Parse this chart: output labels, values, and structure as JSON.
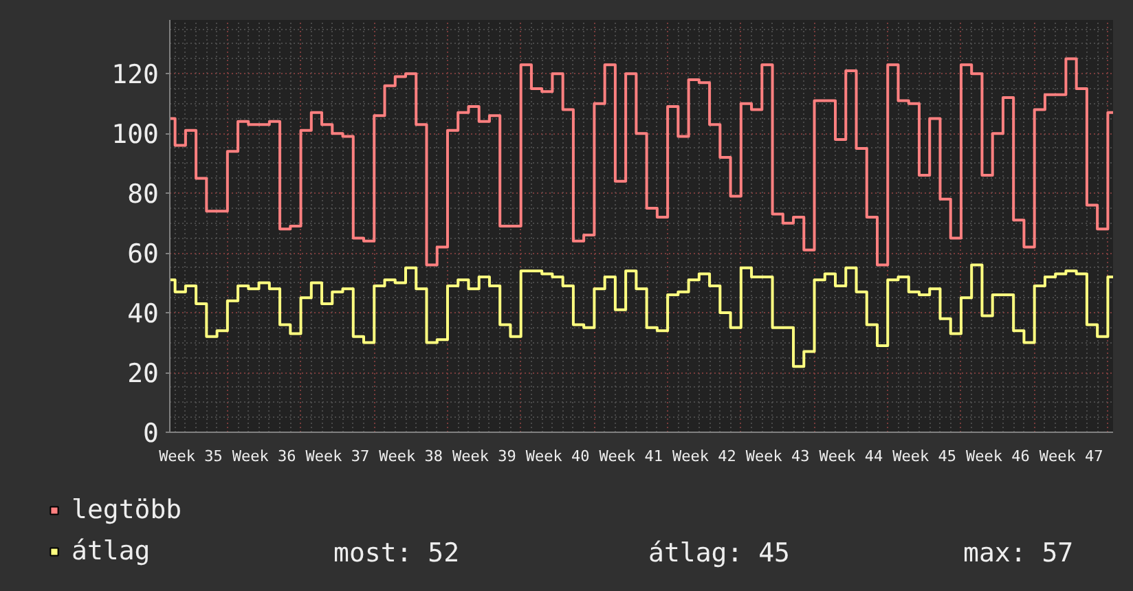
{
  "chart_data": {
    "type": "step",
    "categories": [
      null,
      null,
      "Week 35",
      null,
      null,
      null,
      null,
      null,
      null,
      "Week 36",
      null,
      null,
      null,
      null,
      null,
      null,
      "Week 37",
      null,
      null,
      null,
      null,
      null,
      null,
      "Week 38",
      null,
      null,
      null,
      null,
      null,
      null,
      "Week 39",
      null,
      null,
      null,
      null,
      null,
      null,
      "Week 40",
      null,
      null,
      null,
      null,
      null,
      null,
      "Week 41",
      null,
      null,
      null,
      null,
      null,
      null,
      "Week 42",
      null,
      null,
      null,
      null,
      null,
      null,
      "Week 43",
      null,
      null,
      null,
      null,
      null,
      null,
      "Week 44",
      null,
      null,
      null,
      null,
      null,
      null,
      "Week 45",
      null,
      null,
      null,
      null,
      null,
      null,
      "Week 46",
      null,
      null,
      null,
      null,
      null,
      null,
      "Week 47",
      null,
      null,
      null,
      null
    ],
    "ylim": [
      0,
      138
    ],
    "yticks": [
      0,
      20,
      40,
      60,
      80,
      100,
      120
    ],
    "grid": true,
    "legend": "bottom left",
    "series": [
      {
        "name": "legtöbb",
        "color": "#ff8080",
        "values": [
          105,
          96,
          101,
          85,
          74,
          74,
          94,
          104,
          103,
          103,
          104,
          68,
          69,
          101,
          107,
          103,
          100,
          99,
          65,
          64,
          106,
          116,
          119,
          120,
          103,
          56,
          62,
          101,
          107,
          109,
          104,
          106,
          69,
          69,
          123,
          115,
          114,
          120,
          108,
          64,
          66,
          110,
          123,
          84,
          120,
          100,
          75,
          72,
          109,
          99,
          118,
          117,
          103,
          92,
          79,
          110,
          108,
          123,
          73,
          70,
          72,
          61,
          111,
          111,
          98,
          121,
          95,
          72,
          56,
          123,
          111,
          110,
          86,
          105,
          78,
          65,
          123,
          120,
          86,
          100,
          112,
          71,
          62,
          108,
          113,
          113,
          125,
          115,
          76,
          68,
          107
        ]
      },
      {
        "name": "átlag",
        "color": "#ffff80",
        "values": [
          51,
          47,
          49,
          43,
          32,
          34,
          44,
          49,
          48,
          50,
          48,
          36,
          33,
          45,
          50,
          43,
          47,
          48,
          32,
          30,
          49,
          51,
          50,
          55,
          48,
          30,
          31,
          49,
          51,
          48,
          52,
          49,
          36,
          32,
          54,
          54,
          53,
          52,
          49,
          36,
          35,
          48,
          52,
          41,
          54,
          48,
          35,
          34,
          46,
          47,
          51,
          53,
          49,
          40,
          35,
          55,
          52,
          52,
          35,
          35,
          22,
          27,
          51,
          53,
          49,
          55,
          47,
          36,
          29,
          51,
          52,
          47,
          46,
          48,
          38,
          33,
          45,
          56,
          39,
          46,
          46,
          34,
          30,
          49,
          52,
          53,
          54,
          53,
          36,
          32,
          52
        ]
      }
    ],
    "annotations": [
      "most: 52",
      "átlag: 45",
      "max: 57"
    ]
  }
}
